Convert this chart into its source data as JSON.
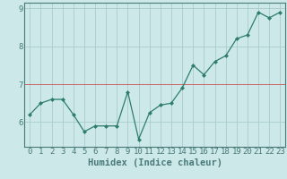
{
  "x": [
    0,
    1,
    2,
    3,
    4,
    5,
    6,
    7,
    8,
    9,
    10,
    11,
    12,
    13,
    14,
    15,
    16,
    17,
    18,
    19,
    20,
    21,
    22,
    23
  ],
  "y": [
    6.2,
    6.5,
    6.6,
    6.6,
    6.2,
    5.75,
    5.9,
    5.9,
    5.9,
    6.8,
    5.55,
    6.25,
    6.45,
    6.5,
    6.9,
    7.5,
    7.25,
    7.6,
    7.75,
    8.2,
    8.3,
    8.9,
    8.75,
    8.9
  ],
  "xlabel": "Humidex (Indice chaleur)",
  "line_color": "#2d7d6e",
  "marker_color": "#2d7d6e",
  "bg_color": "#cce8e8",
  "grid_color": "#aacccc",
  "axis_color": "#4a7a7a",
  "red_line_color": "#cc6666",
  "ylim": [
    5.35,
    9.15
  ],
  "xlim": [
    -0.5,
    23.5
  ],
  "yticks": [
    6,
    7,
    8,
    9
  ],
  "xticks": [
    0,
    1,
    2,
    3,
    4,
    5,
    6,
    7,
    8,
    9,
    10,
    11,
    12,
    13,
    14,
    15,
    16,
    17,
    18,
    19,
    20,
    21,
    22,
    23
  ],
  "xlabel_fontsize": 7.5,
  "tick_fontsize": 6.5,
  "red_hline_y": 7
}
